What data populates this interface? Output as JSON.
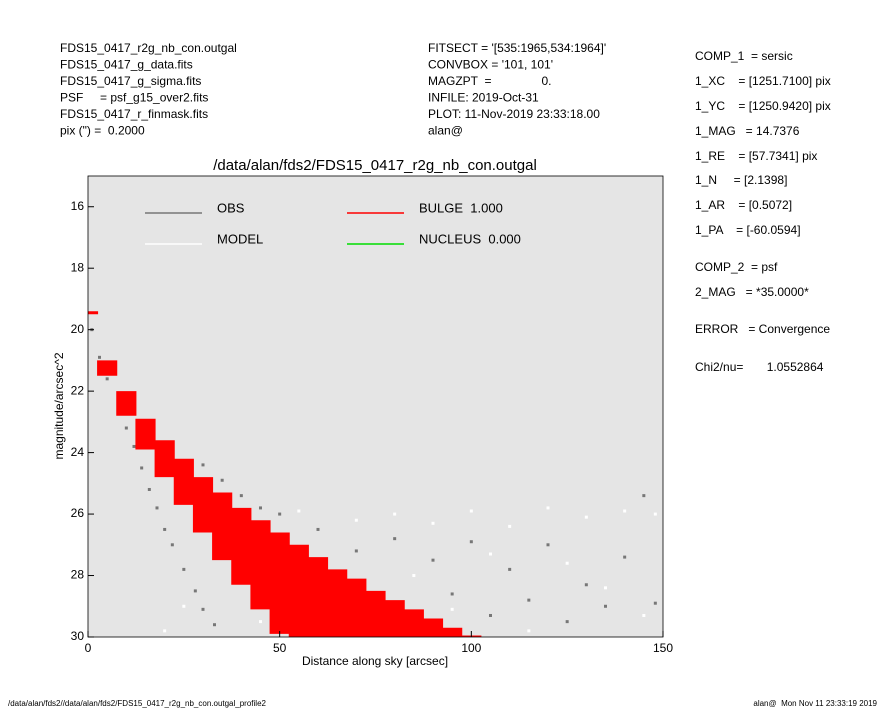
{
  "header": {
    "left": [
      "FDS15_0417_r2g_nb_con.outgal",
      "FDS15_0417_g_data.fits",
      "FDS15_0417_g_sigma.fits",
      "PSF     = psf_g15_over2.fits",
      "FDS15_0417_r_finmask.fits",
      "pix (\") =  0.2000"
    ],
    "middle": [
      "FITSECT = '[535:1965,534:1964]'",
      "CONVBOX = '101, 101'",
      "MAGZPT  =               0.",
      "INFILE: 2019-Oct-31",
      "PLOT: 11-Nov-2019 23:33:18.00",
      "alan@"
    ]
  },
  "params": [
    "COMP_1  = sersic",
    "1_XC    = [1251.7100] pix",
    "1_YC    = [1250.9420] pix",
    "1_MAG   = 14.7376",
    "1_RE    = [57.7341] pix",
    "1_N     = [2.1398]",
    "1_AR    = [0.5072]",
    "1_PA    = [-60.0594]",
    "COMP_2  = psf",
    "2_MAG   = *35.0000*",
    "ERROR   = Convergence",
    "Chi2/nu=       1.0552864"
  ],
  "footer": {
    "left": "/data/alan/fds2//data/alan/fds2/FDS15_0417_r2g_nb_con.outgal_profile2",
    "right": "alan@  Mon Nov 11 23:33:19 2019"
  },
  "chart_data": {
    "type": "scatter",
    "title": "/data/alan/fds2/FDS15_0417_r2g_nb_con.outgal",
    "x_label": "Distance along sky [arcsec]",
    "y_label": "magnitude/arcsec^2",
    "xlim": [
      0,
      150
    ],
    "ylim": [
      15,
      30
    ],
    "y_inverted": true,
    "xticks": [
      0,
      50,
      100,
      150
    ],
    "yticks": [
      16,
      18,
      20,
      22,
      24,
      26,
      28,
      30
    ],
    "background": "#e5e5e5",
    "series": [
      {
        "name": "OBS",
        "color": "#777777",
        "label_color": "#999999",
        "mark": "points",
        "x": [
          1,
          3,
          5,
          8,
          10,
          12,
          14,
          16,
          18,
          20,
          22,
          25,
          28,
          30,
          33,
          26,
          30,
          35,
          40,
          45,
          50,
          60,
          70,
          80,
          90,
          100,
          110,
          120,
          130,
          140,
          145,
          148,
          105,
          115,
          125,
          135,
          95,
          85,
          75,
          65
        ],
        "values": [
          20.0,
          20.9,
          21.6,
          22.6,
          23.2,
          23.8,
          24.5,
          25.2,
          25.8,
          26.5,
          27.0,
          27.8,
          28.5,
          29.1,
          29.6,
          24.6,
          24.4,
          24.9,
          25.4,
          25.8,
          26.0,
          26.5,
          27.2,
          26.8,
          27.5,
          26.9,
          27.8,
          27.0,
          28.3,
          27.4,
          25.4,
          28.9,
          29.3,
          28.8,
          29.5,
          29.0,
          28.6,
          29.2,
          28.9,
          29.4
        ]
      },
      {
        "name": "MODEL",
        "color": "#ffffff",
        "label_color": "#ffffff",
        "mark": "points",
        "x": [
          40,
          50,
          60,
          55,
          70,
          80,
          90,
          100,
          110,
          120,
          130,
          140,
          148,
          75,
          85,
          95,
          105,
          115,
          125,
          135,
          145,
          20,
          25,
          45
        ],
        "values": [
          26.3,
          27.4,
          28.6,
          25.9,
          26.2,
          26.0,
          26.3,
          25.9,
          26.4,
          25.8,
          26.1,
          25.9,
          26.0,
          29.7,
          28.0,
          29.1,
          27.3,
          29.8,
          27.6,
          28.4,
          29.3,
          29.8,
          29.0,
          29.5
        ]
      },
      {
        "name": "BULGE  1.000",
        "color": "#ff0000",
        "label_color": "#ff0000",
        "mark": "band",
        "x": [
          0,
          5,
          10,
          15,
          20,
          25,
          30,
          35,
          40,
          45,
          50,
          55,
          60,
          65,
          70,
          75,
          80,
          85,
          90,
          95,
          100
        ],
        "values": [
          19.4,
          21.0,
          22.0,
          22.9,
          23.6,
          24.2,
          24.8,
          25.3,
          25.8,
          26.2,
          26.6,
          27.0,
          27.4,
          27.8,
          28.1,
          28.5,
          28.8,
          29.1,
          29.4,
          29.7,
          29.95
        ],
        "values_low": [
          19.5,
          21.5,
          22.8,
          23.9,
          24.8,
          25.7,
          26.6,
          27.5,
          28.3,
          29.1,
          29.9,
          30,
          30,
          30,
          30,
          30,
          30,
          30,
          30,
          30,
          30
        ]
      },
      {
        "name": "NUCLEUS  0.000",
        "color": "#00dd00",
        "label_color": "#00dd00",
        "mark": "points",
        "x": [],
        "values": []
      }
    ]
  }
}
